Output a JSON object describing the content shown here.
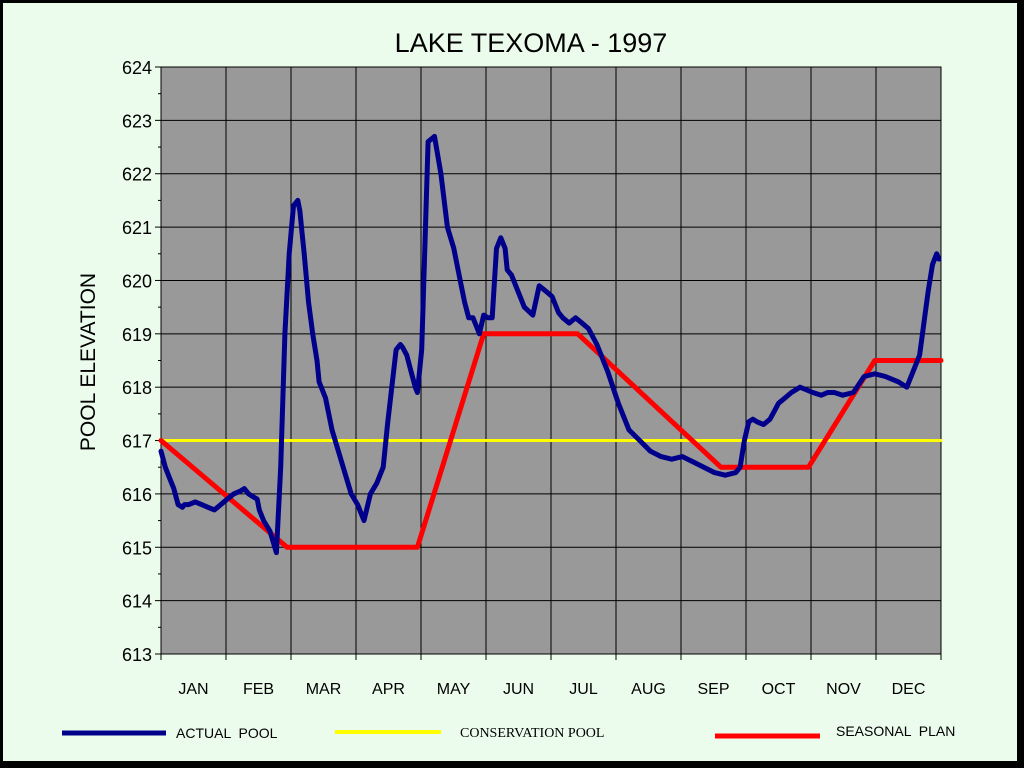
{
  "chart_data": {
    "type": "line",
    "title": "LAKE TEXOMA - 1997",
    "xlabel": "",
    "ylabel": "POOL ELEVATION",
    "ylim": [
      613,
      624
    ],
    "yticks": [
      "613",
      "614",
      "615",
      "616",
      "617",
      "618",
      "619",
      "620",
      "621",
      "622",
      "623",
      "624"
    ],
    "months": [
      "JAN",
      "FEB",
      "MAR",
      "APR",
      "MAY",
      "JUN",
      "JUL",
      "AUG",
      "SEP",
      "OCT",
      "NOV",
      "DEC"
    ],
    "xlim": [
      1,
      366
    ],
    "grid": true,
    "legend_position": "bottom",
    "plot_background": "#999999",
    "series": [
      {
        "name": "ACTUAL  POOL",
        "color": "#00008b",
        "x": [
          1,
          3,
          5,
          7,
          9,
          11,
          12,
          14,
          17,
          20,
          23,
          26,
          29,
          32,
          35,
          38,
          40,
          42,
          44,
          46,
          47,
          49,
          52,
          55,
          57,
          59,
          61,
          63,
          65,
          66,
          67,
          68,
          70,
          72,
          74,
          75,
          78,
          81,
          84,
          87,
          90,
          93,
          96,
          99,
          102,
          105,
          107,
          109,
          111,
          113,
          114,
          116,
          118,
          120,
          121,
          123,
          126,
          129,
          132,
          135,
          138,
          141,
          143,
          145,
          147,
          149,
          150,
          152,
          154,
          156,
          158,
          160,
          162,
          163,
          165,
          168,
          171,
          175,
          178,
          181,
          184,
          187,
          189,
          192,
          195,
          198,
          201,
          205,
          210,
          215,
          220,
          225,
          230,
          235,
          240,
          245,
          250,
          255,
          260,
          265,
          270,
          272,
          274,
          276,
          278,
          280,
          283,
          286,
          290,
          293,
          296,
          300,
          303,
          306,
          310,
          313,
          316,
          320,
          325,
          330,
          335,
          340,
          343,
          346,
          350,
          353,
          356,
          358,
          360,
          362,
          364,
          365
        ],
        "values": [
          616.8,
          616.5,
          616.3,
          616.1,
          615.8,
          615.75,
          615.8,
          615.8,
          615.85,
          615.8,
          615.75,
          615.7,
          615.8,
          615.9,
          616.0,
          616.05,
          616.1,
          616.0,
          615.95,
          615.9,
          615.7,
          615.5,
          615.3,
          614.9,
          616.5,
          619.0,
          620.5,
          621.4,
          621.5,
          621.3,
          620.9,
          620.5,
          619.6,
          619.0,
          618.5,
          618.1,
          617.8,
          617.2,
          616.8,
          616.4,
          616.0,
          615.8,
          615.5,
          616.0,
          616.2,
          616.5,
          617.3,
          618.0,
          618.7,
          618.8,
          618.75,
          618.6,
          618.3,
          618.0,
          617.9,
          618.7,
          622.6,
          622.7,
          622.0,
          621.0,
          620.6,
          620.0,
          619.6,
          619.3,
          619.3,
          619.1,
          619.0,
          619.35,
          619.3,
          619.3,
          620.6,
          620.8,
          620.6,
          620.2,
          620.1,
          619.8,
          619.5,
          619.35,
          619.9,
          619.8,
          619.7,
          619.4,
          619.3,
          619.2,
          619.3,
          619.2,
          619.1,
          618.8,
          618.3,
          617.7,
          617.2,
          617.0,
          616.8,
          616.7,
          616.65,
          616.7,
          616.6,
          616.5,
          616.4,
          616.35,
          616.4,
          616.5,
          617.0,
          617.35,
          617.4,
          617.35,
          617.3,
          617.4,
          617.7,
          617.8,
          617.9,
          618.0,
          617.95,
          617.9,
          617.85,
          617.9,
          617.9,
          617.85,
          617.9,
          618.2,
          618.25,
          618.2,
          618.15,
          618.1,
          618.0,
          618.3,
          618.6,
          619.2,
          619.8,
          620.3,
          620.5,
          620.4
        ]
      },
      {
        "name": "CONSERVATION POOL",
        "color": "#ffff00",
        "x": [
          1,
          366
        ],
        "values": [
          617.0,
          617.0
        ]
      },
      {
        "name": "SEASONAL  PLAN",
        "color": "#ff0000",
        "x": [
          1,
          60,
          121,
          152,
          196,
          263,
          304,
          335,
          366
        ],
        "values": [
          617.0,
          615.0,
          615.0,
          619.0,
          619.0,
          616.5,
          616.5,
          618.5,
          618.5
        ]
      }
    ]
  }
}
